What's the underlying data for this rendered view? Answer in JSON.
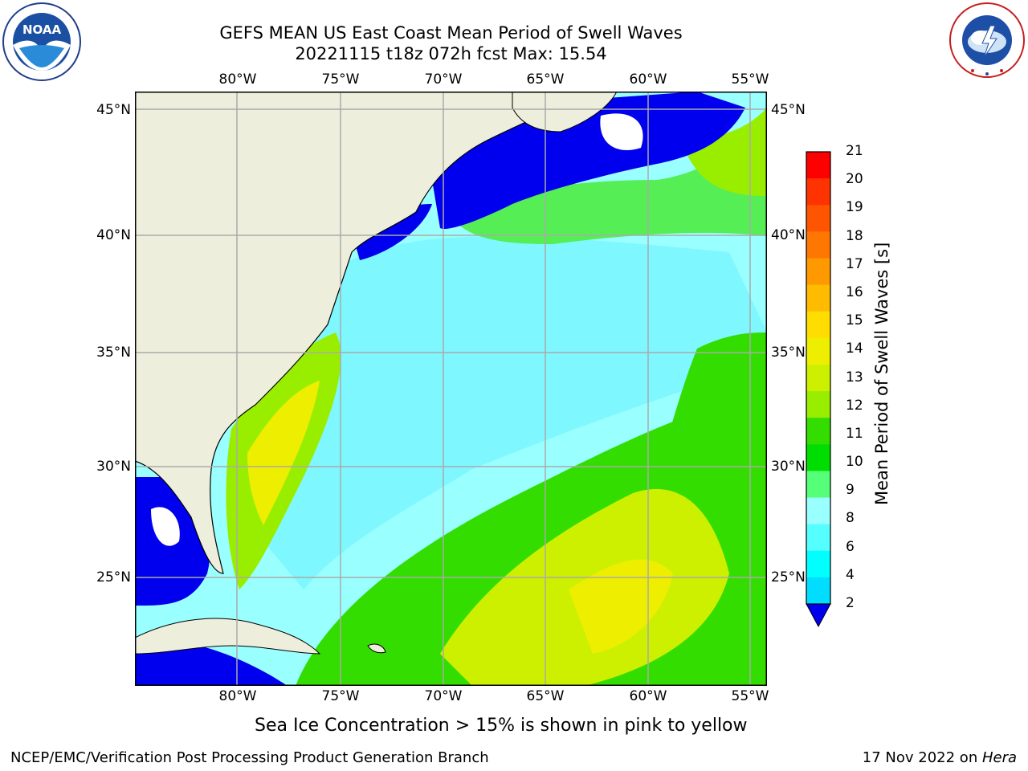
{
  "header": {
    "title_line1": "GEFS MEAN US East Coast Mean Period of Swell Waves",
    "title_line2": "20221115 t18z 072h fcst   Max: 15.54"
  },
  "logos": {
    "noaa_text": "NOAA",
    "noaa_ring_text": "NATIONAL OCEANIC AND ATMOSPHERIC ADMINISTRATION · U.S. DEPARTMENT OF COMMERCE",
    "nws_ring_text": "NATIONAL WEATHER SERVICE"
  },
  "map": {
    "lon_labels": [
      "80°W",
      "75°W",
      "70°W",
      "65°W",
      "60°W",
      "55°W"
    ],
    "lat_labels_left": [
      "45°N",
      "40°N",
      "35°N",
      "30°N",
      "25°N"
    ],
    "lat_labels_right": [
      "45°N",
      "40°N",
      "35°N",
      "30°N",
      "25°N"
    ]
  },
  "colorbar": {
    "title": "Mean Period of Swell Waves [s]",
    "tick_labels": [
      "21",
      "20",
      "19",
      "18",
      "17",
      "16",
      "15",
      "14",
      "13",
      "12",
      "11",
      "10",
      "9",
      "8",
      "6",
      "4",
      "2"
    ],
    "colors": [
      "#ff0000",
      "#ff3300",
      "#ff5500",
      "#ff7700",
      "#ff9900",
      "#ffbb00",
      "#ffdd00",
      "#eeee00",
      "#ccf000",
      "#99ee00",
      "#33dd00",
      "#00dd00",
      "#55ff77",
      "#99ffff",
      "#55ffff",
      "#00ffff",
      "#00ddff",
      "#0077ff"
    ]
  },
  "footer": {
    "note": "Sea Ice Concentration > 15% is shown in pink to yellow",
    "left": "NCEP/EMC/Verification Post Processing Product Generation Branch",
    "right_date": "17 Nov 2022 on ",
    "right_host": "Hera"
  }
}
